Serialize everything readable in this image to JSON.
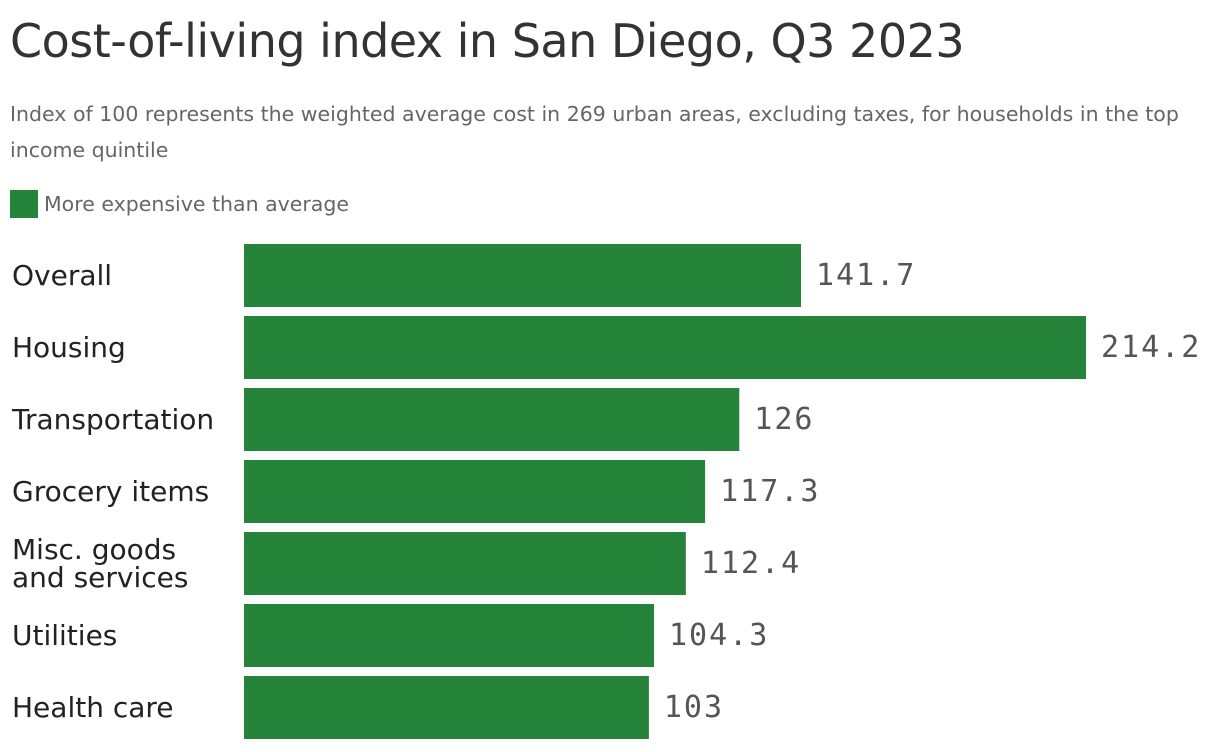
{
  "chart_data": {
    "type": "bar",
    "orientation": "horizontal",
    "title": "Cost-of-living index in San Diego, Q3 2023",
    "subtitle": "Index of 100 represents the weighted average cost in 269 urban areas, excluding taxes, for households in the top income quintile",
    "legend": {
      "entries": [
        {
          "label": "More expensive than average",
          "color": "#26833a"
        }
      ],
      "placement": "top-left"
    },
    "categories": [
      "Overall",
      "Housing",
      "Transportation",
      "Grocery items",
      "Misc. goods and services",
      "Utilities",
      "Health care"
    ],
    "category_lines": [
      [
        "Overall"
      ],
      [
        "Housing"
      ],
      [
        "Transportation"
      ],
      [
        "Grocery items"
      ],
      [
        "Misc. goods",
        "and services"
      ],
      [
        "Utilities"
      ],
      [
        "Health care"
      ]
    ],
    "values": [
      141.7,
      214.2,
      126,
      117.3,
      112.4,
      104.3,
      103
    ],
    "value_labels": [
      "141.7",
      "214.2",
      "126",
      "117.3",
      "112.4",
      "104.3",
      "103"
    ],
    "bar_color": "#26833a",
    "xlim": [
      0,
      214.2
    ],
    "grid": false
  }
}
